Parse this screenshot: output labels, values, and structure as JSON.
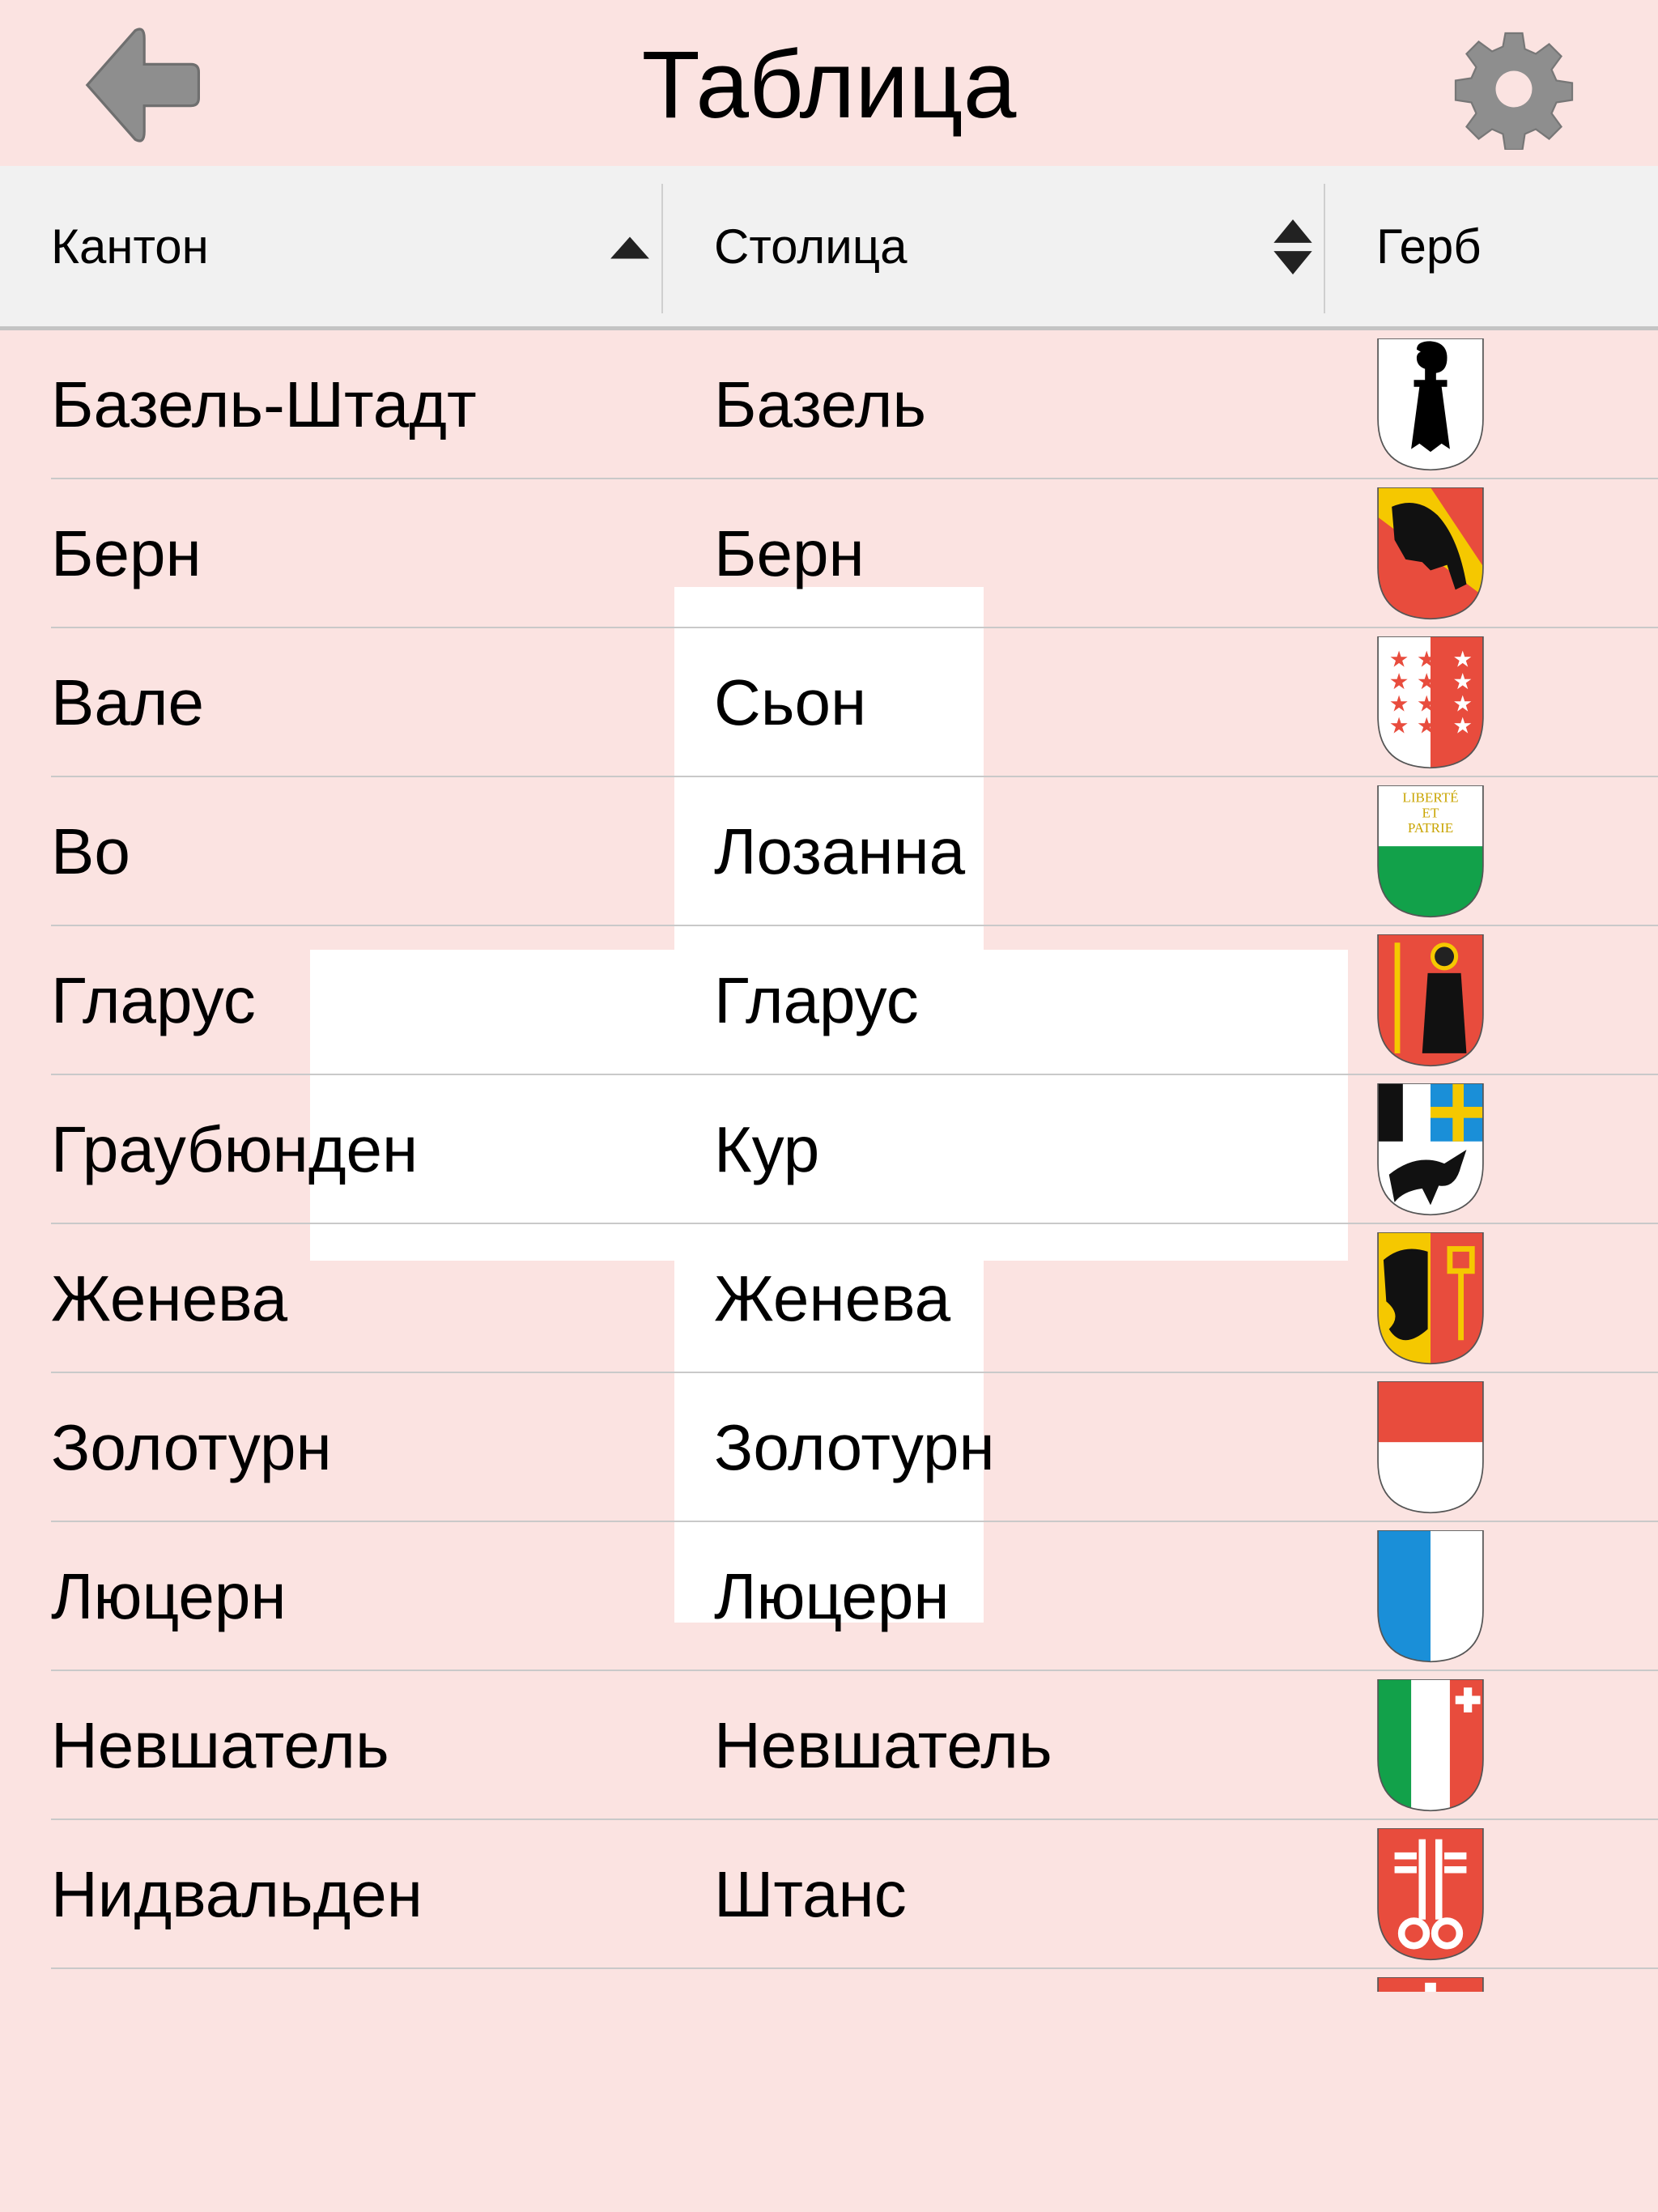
{
  "header": {
    "title": "Таблица",
    "back_icon": "back-arrow-icon",
    "settings_icon": "gear-icon"
  },
  "table": {
    "columns": [
      {
        "label": "Кантон",
        "sort": "ascending"
      },
      {
        "label": "Столица",
        "sort": "unsorted"
      },
      {
        "label": "Герб"
      }
    ],
    "rows": [
      {
        "canton": "Базель-Штадт",
        "capital": "Базель",
        "coat": "basel"
      },
      {
        "canton": "Берн",
        "capital": "Берн",
        "coat": "bern"
      },
      {
        "canton": "Вале",
        "capital": "Сьон",
        "coat": "valais"
      },
      {
        "canton": "Во",
        "capital": "Лозанна",
        "coat": "vaud"
      },
      {
        "canton": "Гларус",
        "capital": "Гларус",
        "coat": "glarus"
      },
      {
        "canton": "Граубюнден",
        "capital": "Кур",
        "coat": "graubunden"
      },
      {
        "canton": "Женева",
        "capital": "Женева",
        "coat": "geneva"
      },
      {
        "canton": "Золотурн",
        "capital": "Золотурн",
        "coat": "solothurn"
      },
      {
        "canton": "Люцерн",
        "capital": "Люцерн",
        "coat": "luzern"
      },
      {
        "canton": "Невшатель",
        "capital": "Невшатель",
        "coat": "neuchatel"
      },
      {
        "canton": "Нидвальден",
        "capital": "Штанс",
        "coat": "nidwalden"
      },
      {
        "canton": "",
        "capital": "",
        "coat": "obwalden"
      }
    ]
  },
  "coat_lettering": {
    "vaud": [
      "LIBERTÉ",
      "ET",
      "PATRIE"
    ]
  },
  "colors": {
    "background": "#fbe3e1",
    "header_bg": "#f1f1f1",
    "red": "#e84c3d",
    "green": "#12a14a",
    "blue": "#1a8fd8",
    "yellow": "#f5c800"
  }
}
